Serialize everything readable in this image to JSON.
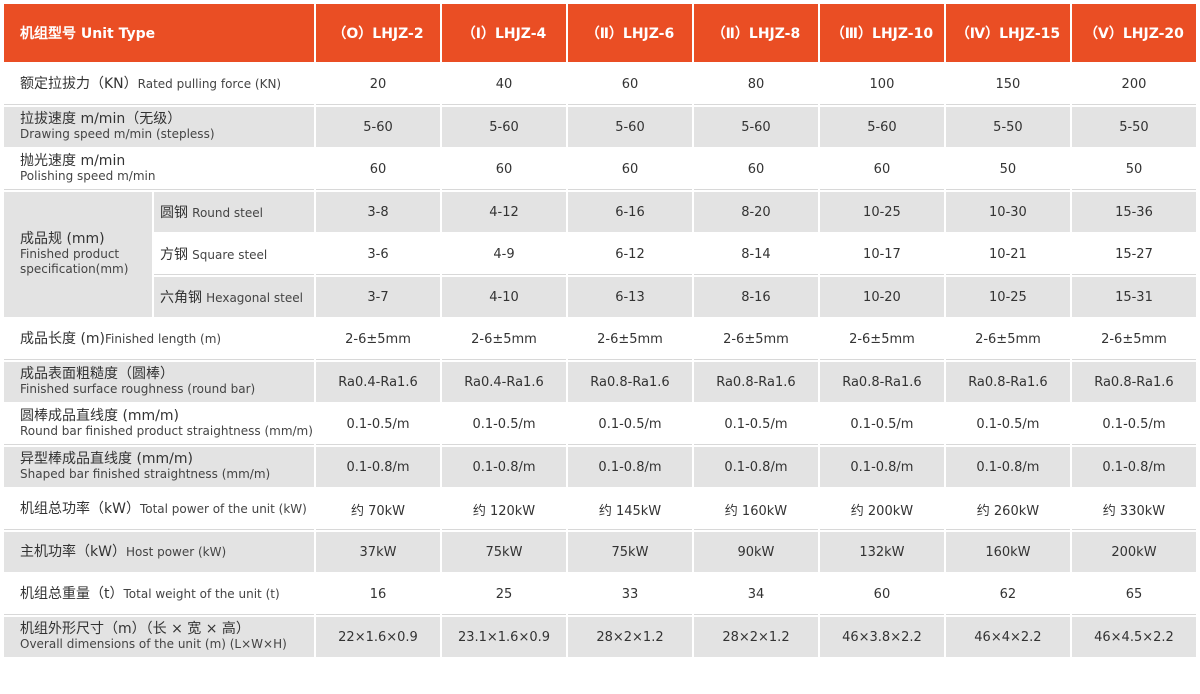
{
  "header": {
    "first": "机组型号 Unit Type",
    "models": [
      "（O）LHJZ-2",
      "（Ⅰ）LHJZ-4",
      "（Ⅱ）LHJZ-6",
      "（Ⅱ）LHJZ-8",
      "（Ⅲ）LHJZ-10",
      "（Ⅳ）LHJZ-15",
      "（Ⅴ）LHJZ-20"
    ]
  },
  "rows": {
    "rated_force": {
      "zh": "额定拉拔力（KN）",
      "en": "Rated pulling force (KN)",
      "values": [
        "20",
        "40",
        "60",
        "80",
        "100",
        "150",
        "200"
      ]
    },
    "drawing_speed": {
      "zh": "拉拔速度 m/min（无级）",
      "en": "Drawing speed m/min (stepless)",
      "values": [
        "5-60",
        "5-60",
        "5-60",
        "5-60",
        "5-60",
        "5-50",
        "5-50"
      ]
    },
    "polishing_speed": {
      "zh": "抛光速度 m/min",
      "en": "Polishing speed m/min",
      "values": [
        "60",
        "60",
        "60",
        "60",
        "60",
        "50",
        "50"
      ]
    },
    "spec": {
      "zh": "成品规 (mm)",
      "en": "Finished product specification(mm)",
      "round": {
        "zh": "圆钢",
        "en": "Round steel",
        "values": [
          "3-8",
          "4-12",
          "6-16",
          "8-20",
          "10-25",
          "10-30",
          "15-36"
        ]
      },
      "square": {
        "zh": "方钢",
        "en": "Square steel",
        "values": [
          "3-6",
          "4-9",
          "6-12",
          "8-14",
          "10-17",
          "10-21",
          "15-27"
        ]
      },
      "hex": {
        "zh": "六角钢",
        "en": "Hexagonal steel",
        "values": [
          "3-7",
          "4-10",
          "6-13",
          "8-16",
          "10-20",
          "10-25",
          "15-31"
        ]
      }
    },
    "length": {
      "zh": "成品长度 (m)",
      "en": "Finished length (m)",
      "values": [
        "2-6±5mm",
        "2-6±5mm",
        "2-6±5mm",
        "2-6±5mm",
        "2-6±5mm",
        "2-6±5mm",
        "2-6±5mm"
      ]
    },
    "roughness": {
      "zh": "成品表面粗糙度（圆棒）",
      "en": "Finished surface roughness (round bar)",
      "values": [
        "Ra0.4-Ra1.6",
        "Ra0.4-Ra1.6",
        "Ra0.8-Ra1.6",
        "Ra0.8-Ra1.6",
        "Ra0.8-Ra1.6",
        "Ra0.8-Ra1.6",
        "Ra0.8-Ra1.6"
      ]
    },
    "round_straightness": {
      "zh": "圆棒成品直线度 (mm/m)",
      "en": "Round bar finished product straightness (mm/m)",
      "values": [
        "0.1-0.5/m",
        "0.1-0.5/m",
        "0.1-0.5/m",
        "0.1-0.5/m",
        "0.1-0.5/m",
        "0.1-0.5/m",
        "0.1-0.5/m"
      ]
    },
    "shaped_straightness": {
      "zh": "异型棒成品直线度 (mm/m)",
      "en": "Shaped bar finished straightness (mm/m)",
      "values": [
        "0.1-0.8/m",
        "0.1-0.8/m",
        "0.1-0.8/m",
        "0.1-0.8/m",
        "0.1-0.8/m",
        "0.1-0.8/m",
        "0.1-0.8/m"
      ]
    },
    "total_power": {
      "zh": "机组总功率（kW）",
      "en": "Total power of the unit (kW)",
      "values": [
        "约 70kW",
        "约 120kW",
        "约 145kW",
        "约 160kW",
        "约 200kW",
        "约 260kW",
        "约 330kW"
      ]
    },
    "host_power": {
      "zh": "主机功率（kW）",
      "en": "Host power (kW)",
      "values": [
        "37kW",
        "75kW",
        "75kW",
        "90kW",
        "132kW",
        "160kW",
        "200kW"
      ]
    },
    "total_weight": {
      "zh": "机组总重量（t）",
      "en": "Total weight of the unit (t)",
      "values": [
        "16",
        "25",
        "33",
        "34",
        "60",
        "62",
        "65"
      ]
    },
    "dimensions": {
      "zh": "机组外形尺寸（m）（长 × 宽 × 高）",
      "en": "Overall dimensions of the unit (m) (L×W×H)",
      "values": [
        "22×1.6×0.9",
        "23.1×1.6×0.9",
        "28×2×1.2",
        "28×2×1.2",
        "46×3.8×2.2",
        "46×4×2.2",
        "46×4.5×2.2"
      ]
    }
  },
  "colors": {
    "header_bg": "#ea4e24",
    "stripe": "#e3e3e3"
  }
}
